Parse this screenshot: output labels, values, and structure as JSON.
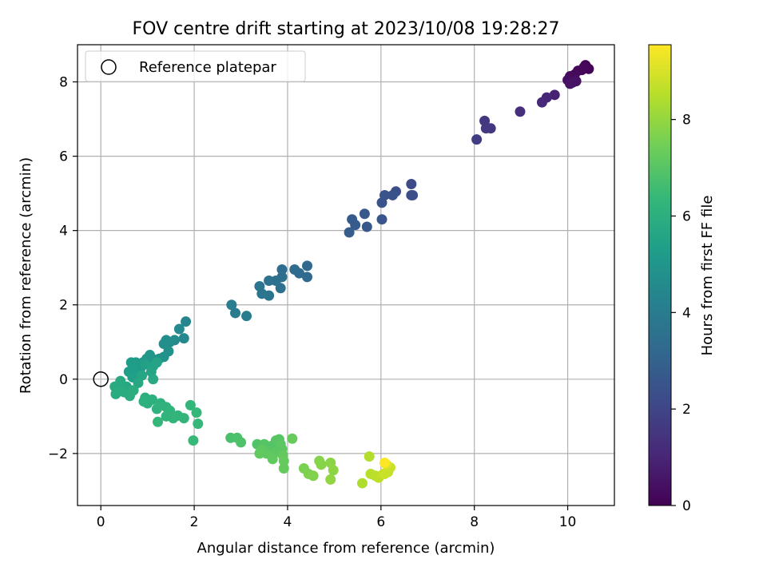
{
  "chart_data": {
    "type": "scatter",
    "title": "FOV centre drift starting at 2023/10/08 19:28:27",
    "xlabel": "Angular distance from reference (arcmin)",
    "ylabel": "Rotation from reference (arcmin)",
    "xlim": [
      -0.5,
      11.0
    ],
    "ylim": [
      -3.4,
      9.0
    ],
    "x_ticks": [
      0,
      2,
      4,
      6,
      8,
      10
    ],
    "y_ticks": [
      -2,
      0,
      2,
      4,
      6,
      8
    ],
    "x_tick_labels": [
      "0",
      "2",
      "4",
      "6",
      "8",
      "10"
    ],
    "y_tick_labels": [
      "−2",
      "0",
      "2",
      "4",
      "6",
      "8"
    ],
    "grid": true,
    "legend": {
      "placement": "upper-left",
      "entries": [
        "Reference platepar"
      ]
    },
    "reference_point": {
      "x": 0,
      "y": 0,
      "marker": "hollow-circle"
    },
    "colorbar": {
      "label": "Hours from first FF file",
      "colormap": "viridis",
      "range": [
        0,
        9.55
      ],
      "ticks": [
        0,
        2,
        4,
        6,
        8
      ],
      "tick_labels": [
        "0",
        "2",
        "4",
        "6",
        "8"
      ]
    },
    "series": [
      {
        "points": [
          [
            10.38,
            8.45,
            0.0
          ],
          [
            10.45,
            8.35,
            0.05
          ],
          [
            10.3,
            8.32,
            0.1
          ],
          [
            10.22,
            8.3,
            0.15
          ],
          [
            10.35,
            8.4,
            0.2
          ],
          [
            10.15,
            8.2,
            0.25
          ],
          [
            10.05,
            8.15,
            0.3
          ],
          [
            10.0,
            8.05,
            0.35
          ],
          [
            10.1,
            7.98,
            0.4
          ],
          [
            10.18,
            8.02,
            0.45
          ],
          [
            10.05,
            7.95,
            0.5
          ],
          [
            9.72,
            7.65,
            0.9
          ],
          [
            9.55,
            7.58,
            1.0
          ],
          [
            9.45,
            7.45,
            1.05
          ],
          [
            8.98,
            7.2,
            1.3
          ],
          [
            8.22,
            6.95,
            1.5
          ],
          [
            8.35,
            6.75,
            1.55
          ],
          [
            8.25,
            6.75,
            1.6
          ],
          [
            8.05,
            6.45,
            1.7
          ],
          [
            6.65,
            5.25,
            2.2
          ],
          [
            6.65,
            4.95,
            2.25
          ],
          [
            6.68,
            4.95,
            2.3
          ],
          [
            6.32,
            5.05,
            2.35
          ],
          [
            6.25,
            4.95,
            2.4
          ],
          [
            6.08,
            4.95,
            2.45
          ],
          [
            6.02,
            4.75,
            2.5
          ],
          [
            6.02,
            4.3,
            2.55
          ],
          [
            5.65,
            4.45,
            2.6
          ],
          [
            5.7,
            4.1,
            2.65
          ],
          [
            5.38,
            4.3,
            2.7
          ],
          [
            5.45,
            4.15,
            2.75
          ],
          [
            5.32,
            3.95,
            2.8
          ],
          [
            4.42,
            3.05,
            3.2
          ],
          [
            4.42,
            2.75,
            3.25
          ],
          [
            4.25,
            2.85,
            3.3
          ],
          [
            4.15,
            2.95,
            3.35
          ],
          [
            3.88,
            2.95,
            3.4
          ],
          [
            3.88,
            2.75,
            3.45
          ],
          [
            3.85,
            2.45,
            3.5
          ],
          [
            3.75,
            2.65,
            3.55
          ],
          [
            3.6,
            2.65,
            3.6
          ],
          [
            3.6,
            2.25,
            3.65
          ],
          [
            3.45,
            2.3,
            3.7
          ],
          [
            3.4,
            2.5,
            3.75
          ],
          [
            3.12,
            1.7,
            3.95
          ],
          [
            2.88,
            1.78,
            4.0
          ],
          [
            2.8,
            2.0,
            4.05
          ],
          [
            1.82,
            1.55,
            4.45
          ],
          [
            1.78,
            1.1,
            4.5
          ],
          [
            1.68,
            1.35,
            4.55
          ],
          [
            1.58,
            1.05,
            4.6
          ],
          [
            1.48,
            1.0,
            4.65
          ],
          [
            1.4,
            1.05,
            4.7
          ],
          [
            1.35,
            0.95,
            4.75
          ],
          [
            1.45,
            0.75,
            4.8
          ],
          [
            1.35,
            0.6,
            4.85
          ],
          [
            1.25,
            0.55,
            4.9
          ],
          [
            1.1,
            0.55,
            4.95
          ],
          [
            1.05,
            0.65,
            5.0
          ],
          [
            0.98,
            0.55,
            5.05
          ],
          [
            0.9,
            0.45,
            5.1
          ],
          [
            0.85,
            0.3,
            5.15
          ],
          [
            0.75,
            0.45,
            5.2
          ],
          [
            0.65,
            0.45,
            5.25
          ],
          [
            0.72,
            0.25,
            5.3
          ],
          [
            0.6,
            0.2,
            5.35
          ],
          [
            0.68,
            0.05,
            5.4
          ],
          [
            0.95,
            0.4,
            5.45
          ],
          [
            1.12,
            0.35,
            5.5
          ],
          [
            1.2,
            0.45,
            5.55
          ],
          [
            1.08,
            0.2,
            5.6
          ],
          [
            0.88,
            0.1,
            5.65
          ],
          [
            0.8,
            -0.1,
            5.7
          ],
          [
            1.12,
            0.0,
            5.72
          ],
          [
            0.55,
            -0.2,
            5.75
          ],
          [
            0.42,
            -0.05,
            5.78
          ],
          [
            0.3,
            -0.2,
            5.82
          ],
          [
            0.4,
            -0.3,
            5.85
          ],
          [
            0.32,
            -0.4,
            5.88
          ],
          [
            0.5,
            -0.35,
            5.9
          ],
          [
            0.62,
            -0.45,
            5.92
          ],
          [
            0.7,
            -0.3,
            5.95
          ],
          [
            0.95,
            -0.5,
            6.0
          ],
          [
            1.1,
            -0.55,
            6.02
          ],
          [
            1.0,
            -0.65,
            6.05
          ],
          [
            0.92,
            -0.6,
            6.07
          ],
          [
            1.28,
            -0.65,
            6.1
          ],
          [
            1.2,
            -0.8,
            6.12
          ],
          [
            1.4,
            -0.75,
            6.15
          ],
          [
            1.48,
            -0.85,
            6.18
          ],
          [
            1.4,
            -1.0,
            6.2
          ],
          [
            1.55,
            -1.05,
            6.22
          ],
          [
            1.65,
            -0.98,
            6.25
          ],
          [
            1.78,
            -1.05,
            6.28
          ],
          [
            1.22,
            -1.15,
            6.3
          ],
          [
            1.92,
            -0.7,
            6.32
          ],
          [
            2.05,
            -0.9,
            6.35
          ],
          [
            2.08,
            -1.2,
            6.38
          ],
          [
            1.98,
            -1.65,
            6.4
          ],
          [
            2.78,
            -1.58,
            6.75
          ],
          [
            2.92,
            -1.58,
            6.8
          ],
          [
            3.0,
            -1.7,
            6.85
          ],
          [
            3.35,
            -1.75,
            6.9
          ],
          [
            3.42,
            -1.82,
            6.92
          ],
          [
            3.5,
            -1.75,
            6.95
          ],
          [
            3.65,
            -1.8,
            6.97
          ],
          [
            3.75,
            -1.65,
            7.0
          ],
          [
            3.82,
            -1.62,
            7.02
          ],
          [
            3.85,
            -1.75,
            7.05
          ],
          [
            3.88,
            -1.88,
            7.07
          ],
          [
            3.78,
            -1.95,
            7.1
          ],
          [
            3.65,
            -2.05,
            7.12
          ],
          [
            3.55,
            -2.0,
            7.14
          ],
          [
            3.45,
            -1.9,
            7.16
          ],
          [
            3.4,
            -2.0,
            7.18
          ],
          [
            3.68,
            -2.15,
            7.2
          ],
          [
            3.9,
            -2.05,
            7.22
          ],
          [
            3.92,
            -2.2,
            7.24
          ],
          [
            3.92,
            -2.4,
            7.26
          ],
          [
            4.1,
            -1.6,
            7.28
          ],
          [
            4.35,
            -2.4,
            7.6
          ],
          [
            4.45,
            -2.55,
            7.65
          ],
          [
            4.55,
            -2.6,
            7.7
          ],
          [
            4.68,
            -2.2,
            7.75
          ],
          [
            4.72,
            -2.3,
            7.8
          ],
          [
            4.92,
            -2.25,
            7.85
          ],
          [
            4.98,
            -2.45,
            7.9
          ],
          [
            4.92,
            -2.7,
            7.95
          ],
          [
            5.6,
            -2.8,
            8.4
          ],
          [
            5.75,
            -2.08,
            8.45
          ],
          [
            5.78,
            -2.55,
            8.5
          ],
          [
            5.88,
            -2.6,
            8.55
          ],
          [
            5.95,
            -2.65,
            8.6
          ],
          [
            6.05,
            -2.55,
            8.65
          ],
          [
            6.15,
            -2.5,
            8.7
          ],
          [
            6.2,
            -2.38,
            8.75
          ],
          [
            6.08,
            -2.55,
            8.8
          ],
          [
            6.12,
            -2.3,
            9.0
          ],
          [
            6.08,
            -2.25,
            9.55
          ]
        ]
      }
    ]
  }
}
